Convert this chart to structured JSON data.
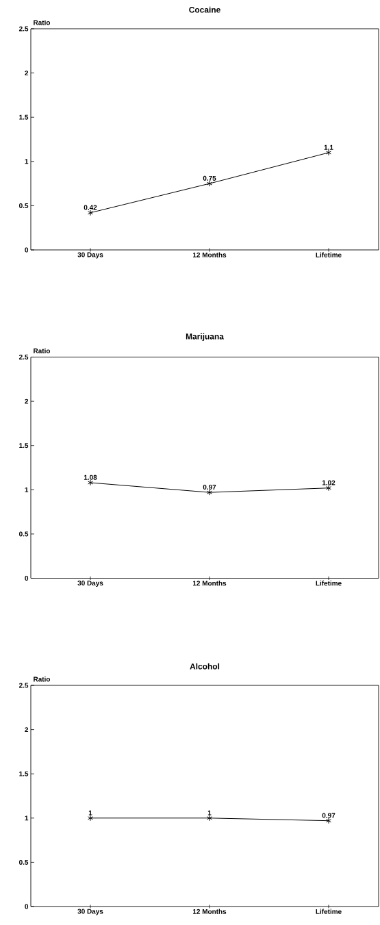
{
  "chart_data": [
    {
      "type": "line",
      "title": "Cocaine",
      "ylabel": "Ratio",
      "categories": [
        "30 Days",
        "12 Months",
        "Lifetime"
      ],
      "values": [
        0.42,
        0.75,
        1.1
      ],
      "color": "#000000",
      "marker": "cross",
      "line_style": "solid",
      "data_labels": true,
      "ylim": [
        0,
        2.5
      ],
      "yticks": [
        0,
        0.5,
        1,
        1.5,
        2,
        2.5
      ]
    },
    {
      "type": "line",
      "title": "Marijuana",
      "ylabel": "Ratio",
      "categories": [
        "30 Days",
        "12 Months",
        "Lifetime"
      ],
      "values": [
        1.08,
        0.97,
        1.02
      ],
      "color": "#000000",
      "marker": "cross",
      "line_style": "solid",
      "data_labels": true,
      "ylim": [
        0,
        2.5
      ],
      "yticks": [
        0,
        0.5,
        1,
        1.5,
        2,
        2.5
      ]
    },
    {
      "type": "line",
      "title": "Alcohol",
      "ylabel": "Ratio",
      "categories": [
        "30 Days",
        "12 Months",
        "Lifetime"
      ],
      "values": [
        1,
        1,
        0.97
      ],
      "color": "#000000",
      "marker": "cross",
      "line_style": "solid",
      "data_labels": true,
      "ylim": [
        0,
        2.5
      ],
      "yticks": [
        0,
        0.5,
        1,
        1.5,
        2,
        2.5
      ]
    }
  ]
}
